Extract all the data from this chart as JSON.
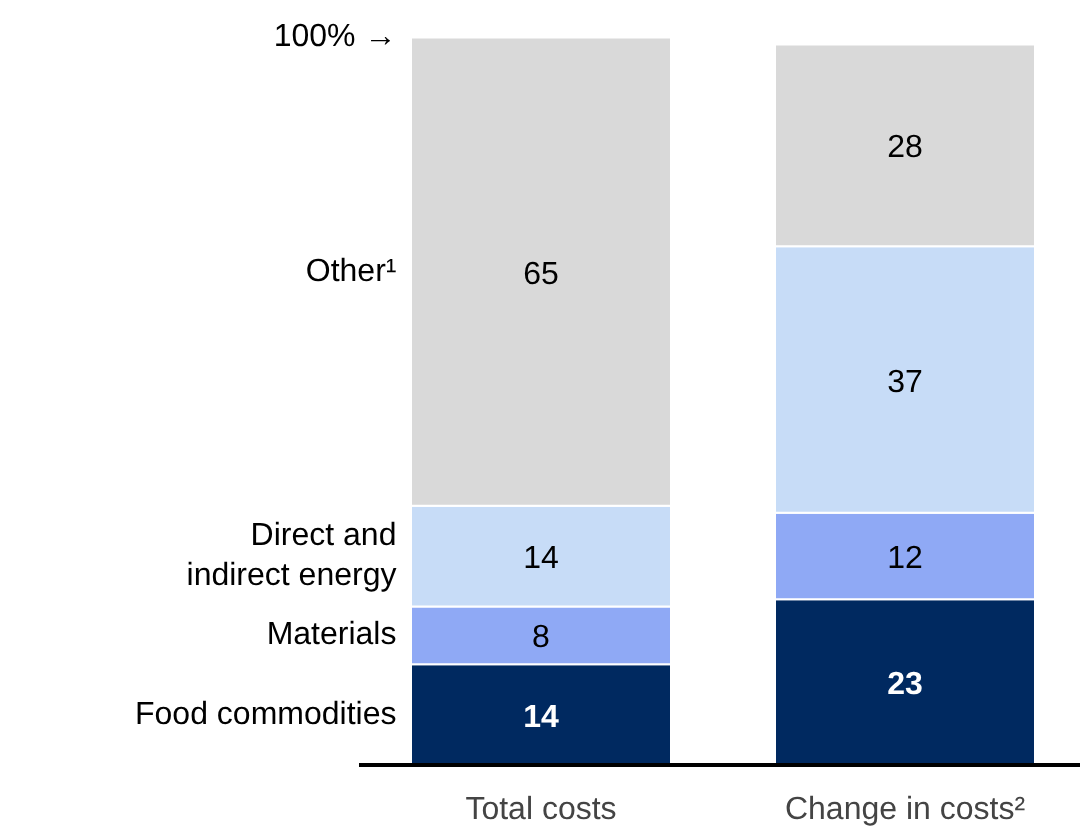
{
  "chart_data": {
    "type": "bar",
    "stacked": true,
    "categories": [
      "Total costs",
      "Change in costs²"
    ],
    "series": [
      {
        "name": "Food commodities",
        "color": "#002960",
        "values": [
          14,
          23
        ]
      },
      {
        "name": "Materials",
        "color": "#8fa9f5",
        "values": [
          8,
          12
        ]
      },
      {
        "name": "Direct and\nindirect energy",
        "color": "#c7dcf7",
        "values": [
          14,
          37
        ]
      },
      {
        "name": "Other¹",
        "color": "#d9d9d9",
        "values": [
          65,
          28
        ]
      }
    ],
    "data_labels": true,
    "legend": "left",
    "grid": false,
    "annotations": [
      "100% →"
    ]
  }
}
